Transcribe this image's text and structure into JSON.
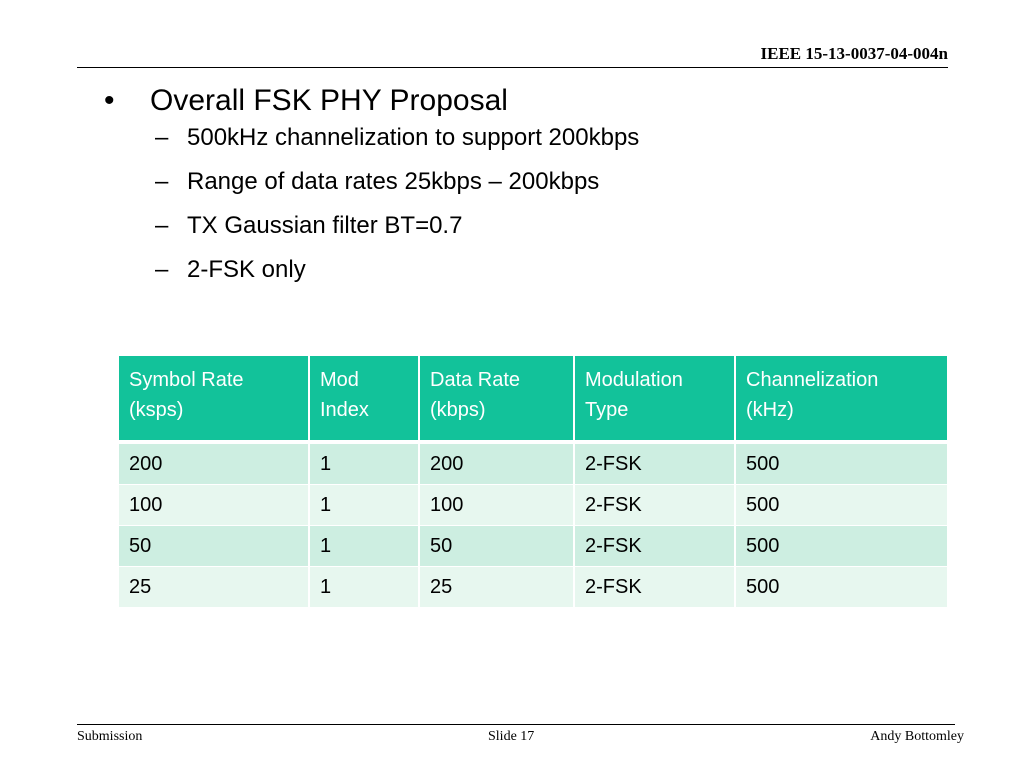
{
  "header": {
    "doc_id": "IEEE 15-13-0037-04-004n"
  },
  "bullets": {
    "main": "Overall FSK PHY Proposal",
    "subs": [
      "500kHz channelization to support 200kbps",
      "Range of data rates 25kbps – 200kbps",
      "TX Gaussian filter BT=0.7",
      "2-FSK only"
    ]
  },
  "table": {
    "headers": [
      [
        "Symbol Rate",
        "(ksps)"
      ],
      [
        "Mod",
        "Index"
      ],
      [
        "Data Rate",
        "(kbps)"
      ],
      [
        "Modulation",
        "Type"
      ],
      [
        "Channelization",
        "(kHz)"
      ]
    ],
    "rows": [
      [
        "200",
        "1",
        "200",
        "2-FSK",
        "500"
      ],
      [
        "100",
        "1",
        "100",
        "2-FSK",
        "500"
      ],
      [
        "50",
        "1",
        "50",
        "2-FSK",
        "500"
      ],
      [
        "25",
        "1",
        "25",
        "2-FSK",
        "500"
      ]
    ]
  },
  "footer": {
    "left": "Submission",
    "center": "Slide 17",
    "right": "Andy Bottomley"
  }
}
